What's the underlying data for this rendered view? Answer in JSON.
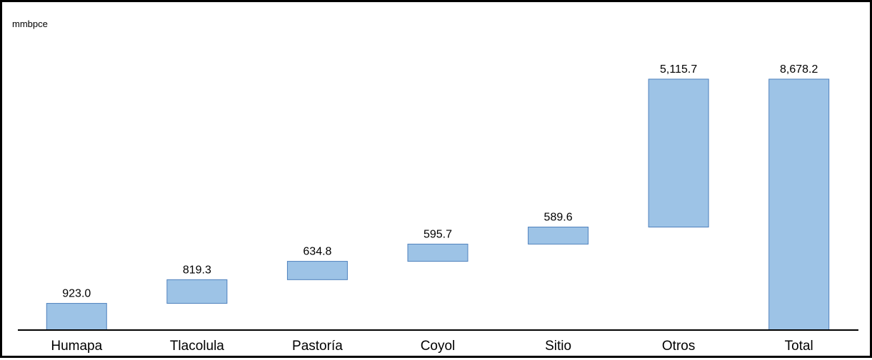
{
  "chart_data": {
    "type": "bar",
    "subtype": "waterfall",
    "ylabel": "mmbpce",
    "categories": [
      "Humapa",
      "Tlacolula",
      "Pastoría",
      "Coyol",
      "Sitio",
      "Otros",
      "Total"
    ],
    "values": [
      923.0,
      819.3,
      634.8,
      595.7,
      589.6,
      5115.7,
      8678.2
    ],
    "value_labels": [
      "923.0",
      "819.3",
      "634.8",
      "595.7",
      "589.6",
      "5,115.7",
      "8,678.2"
    ],
    "total_index": 6,
    "bar_color": "#9dc3e6",
    "bar_border_color": "#4f81bd",
    "grid": false,
    "legend": "none"
  }
}
